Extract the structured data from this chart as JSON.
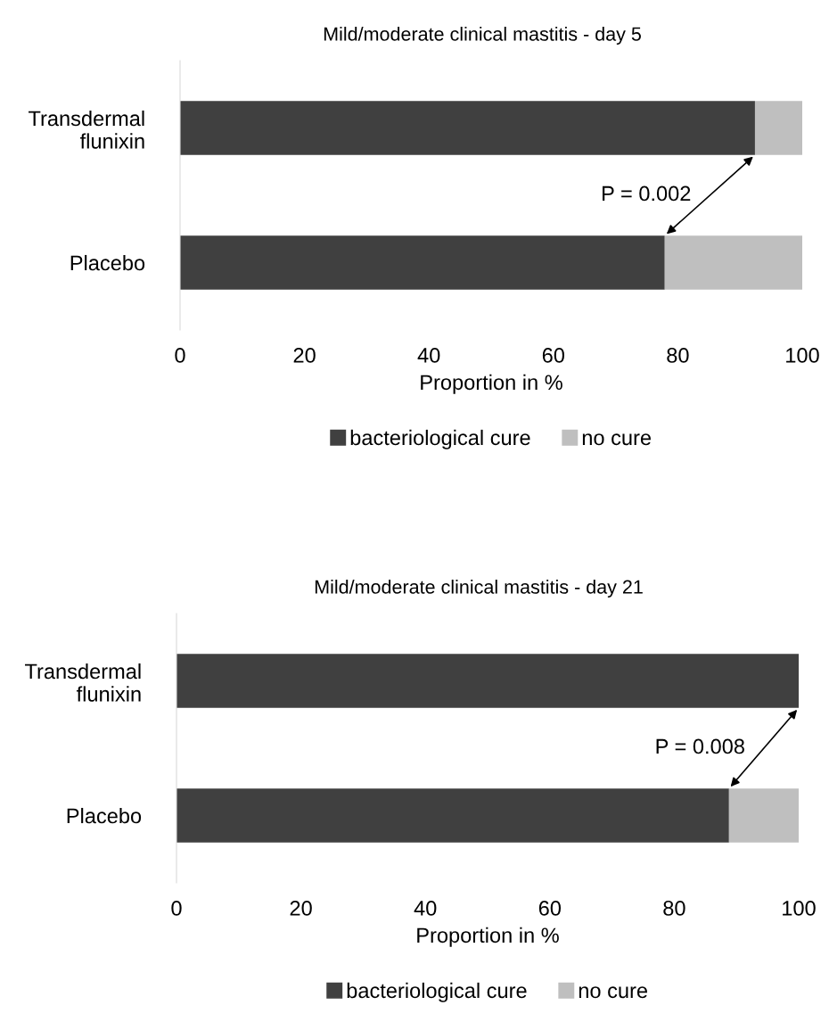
{
  "chart_data": [
    {
      "type": "bar",
      "title": "Mild/moderate clinical mastitis - day 5",
      "xlabel": "Proportion in %",
      "orientation": "horizontal",
      "stacked": true,
      "categories": [
        "Transdermal flunixin",
        "Placebo"
      ],
      "series": [
        {
          "name": "bacteriological cure",
          "color": "#404040",
          "values": [
            92.4,
            77.9
          ]
        },
        {
          "name": "no cure",
          "color": "#bfbfbf",
          "values": [
            7.6,
            22.1
          ]
        }
      ],
      "xlim": [
        0,
        100
      ],
      "xticks": [
        0,
        20,
        40,
        60,
        80,
        100
      ],
      "legend": "bottom",
      "annotations": [
        "P = 0.002"
      ]
    },
    {
      "type": "bar",
      "title": "Mild/moderate clinical mastitis - day 21",
      "xlabel": "Proportion in %",
      "orientation": "horizontal",
      "stacked": true,
      "categories": [
        "Transdermal flunixin",
        "Placebo"
      ],
      "series": [
        {
          "name": "bacteriological cure",
          "color": "#404040",
          "values": [
            100,
            88.8
          ]
        },
        {
          "name": "no cure",
          "color": "#bfbfbf",
          "values": [
            0,
            11.2
          ]
        }
      ],
      "xlim": [
        0,
        100
      ],
      "xticks": [
        0,
        20,
        40,
        60,
        80,
        100
      ],
      "legend": "bottom",
      "annotations": [
        "P = 0.008"
      ]
    }
  ]
}
